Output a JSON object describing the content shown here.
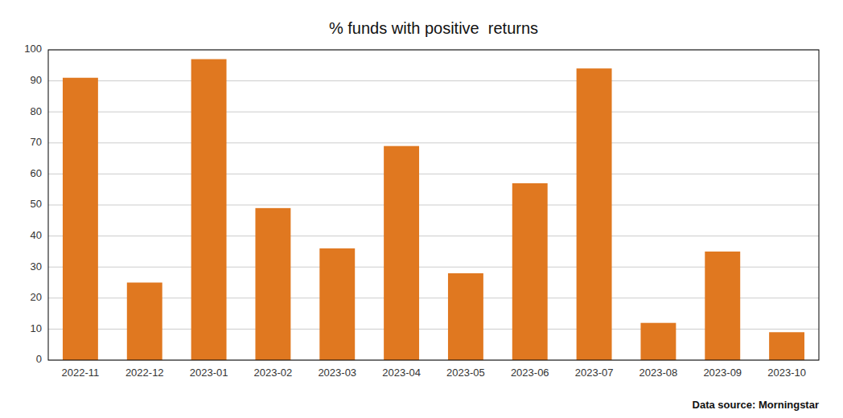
{
  "chart_data": {
    "type": "bar",
    "title": "% funds with positive  returns",
    "categories": [
      "2022-11",
      "2022-12",
      "2023-01",
      "2023-02",
      "2023-03",
      "2023-04",
      "2023-05",
      "2023-06",
      "2023-07",
      "2023-08",
      "2023-09",
      "2023-10"
    ],
    "values": [
      91,
      25,
      97,
      49,
      36,
      69,
      28,
      57,
      94,
      12,
      35,
      9
    ],
    "color": "#E07820",
    "ylim": [
      0,
      100
    ],
    "yticks": [
      0,
      10,
      20,
      30,
      40,
      50,
      60,
      70,
      80,
      90,
      100
    ],
    "grid": true,
    "annotation": "Data source: Morningstar"
  }
}
